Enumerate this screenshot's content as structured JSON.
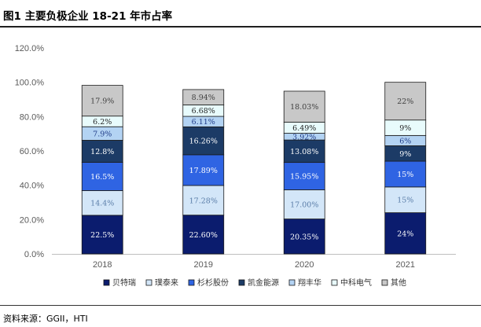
{
  "header": {
    "title": "图1 主要负极企业 18-21 年市占率"
  },
  "footer": {
    "source": "资料来源：GGII，HTI"
  },
  "chart_data": {
    "type": "bar",
    "stacked": true,
    "categories": [
      "2018",
      "2019",
      "2020",
      "2021"
    ],
    "ylim": [
      0,
      120
    ],
    "yticks": [
      "0.0%",
      "20.0%",
      "40.0%",
      "60.0%",
      "80.0%",
      "100.0%",
      "120.0%"
    ],
    "xlabel": "",
    "ylabel": "",
    "grid": false,
    "legend_position": "bottom",
    "series": [
      {
        "name": "贝特瑞",
        "color": "#0b1c6e",
        "label_color": "#ffffff",
        "values": [
          22.5,
          22.6,
          20.35,
          24
        ],
        "labels": [
          "22.5%",
          "22.60%",
          "20.35%",
          "24%"
        ]
      },
      {
        "name": "璞泰来",
        "color": "#d3e6f8",
        "label_color": "#5a7da8",
        "values": [
          14.4,
          17.28,
          17.0,
          15
        ],
        "labels": [
          "14.4%",
          "17.28%",
          "17.00%",
          "15%"
        ]
      },
      {
        "name": "杉杉股份",
        "color": "#2f64e3",
        "label_color": "#ffffff",
        "values": [
          16.5,
          17.89,
          15.95,
          15
        ],
        "labels": [
          "16.5%",
          "17.89%",
          "15.95%",
          "15%"
        ]
      },
      {
        "name": "凯金能源",
        "color": "#1c3b66",
        "label_color": "#ffffff",
        "values": [
          12.8,
          16.26,
          13.08,
          9
        ],
        "labels": [
          "12.8%",
          "16.26%",
          "13.08%",
          "9%"
        ]
      },
      {
        "name": "翔丰华",
        "color": "#b3d3f3",
        "label_color": "#1f3c88",
        "values": [
          7.9,
          6.11,
          3.92,
          6
        ],
        "labels": [
          "7.9%",
          "6.11%",
          "3.92%",
          "6%"
        ]
      },
      {
        "name": "中科电气",
        "color": "#e8fbfc",
        "label_color": "#1f1f1f",
        "values": [
          6.2,
          6.68,
          6.49,
          9
        ],
        "labels": [
          "6.2%",
          "6.68%",
          "6.49%",
          "9%"
        ]
      },
      {
        "name": "其他",
        "color": "#c8c8c8",
        "label_color": "#404040",
        "values": [
          17.9,
          8.94,
          18.03,
          22
        ],
        "labels": [
          "17.9%",
          "8.94%",
          "18.03%",
          "22%"
        ]
      }
    ]
  }
}
